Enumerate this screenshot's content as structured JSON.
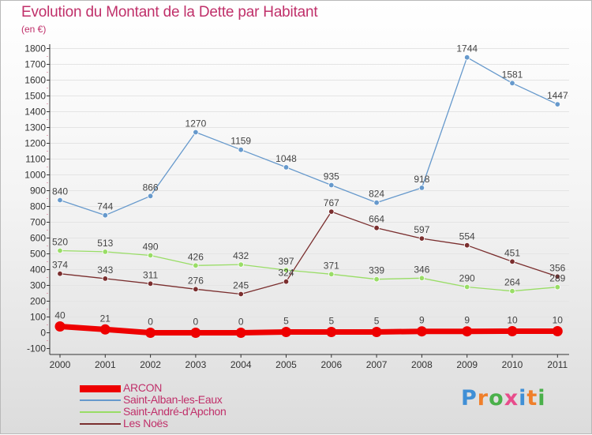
{
  "title": "Evolution du Montant de la Dette par Habitant",
  "subtitle": "(en €)",
  "logo": {
    "text": "Proxiti",
    "colors": [
      "#3f8fd6",
      "#f07f2a",
      "#4ab04a",
      "#e84c8b",
      "#3f8fd6",
      "#f07f2a",
      "#4ab04a"
    ]
  },
  "chart_data": {
    "type": "line",
    "title": "Evolution du Montant de la Dette par Habitant",
    "ylabel": "(en €)",
    "xlabel": "",
    "x": [
      "2000",
      "2001",
      "2002",
      "2003",
      "2004",
      "2005",
      "2006",
      "2007",
      "2008",
      "2009",
      "2010",
      "2011"
    ],
    "ylim": [
      -100,
      1800
    ],
    "yticks": [
      "-100",
      "0",
      "100",
      "200",
      "300",
      "400",
      "500",
      "600",
      "700",
      "800",
      "900",
      "1000",
      "1100",
      "1200",
      "1300",
      "1400",
      "1500",
      "1600",
      "1700",
      "1800"
    ],
    "legend_position": "bottom-left",
    "series": [
      {
        "name": "ARCON",
        "color": "#ee0000",
        "values": [
          40,
          21,
          0,
          0,
          0,
          5,
          5,
          5,
          9,
          9,
          10,
          10
        ],
        "labels": [
          "40",
          "21",
          "0",
          "0",
          "0",
          "5",
          "5",
          "5",
          "9",
          "9",
          "10",
          "10"
        ]
      },
      {
        "name": "Saint-Alban-les-Eaux",
        "color": "#6699cc",
        "values": [
          840,
          744,
          866,
          1270,
          1159,
          1048,
          935,
          824,
          918,
          1744,
          1581,
          1447
        ],
        "labels": [
          "840",
          "744",
          "866",
          "1270",
          "1159",
          "1048",
          "935",
          "824",
          "918",
          "1744",
          "1581",
          "1447"
        ]
      },
      {
        "name": "Saint-André-d'Apchon",
        "color": "#99dd66",
        "values": [
          520,
          513,
          490,
          426,
          432,
          397,
          371,
          339,
          346,
          290,
          264,
          289
        ],
        "labels": [
          "520",
          "513",
          "490",
          "426",
          "432",
          "397",
          "371",
          "339",
          "346",
          "290",
          "264",
          "289"
        ]
      },
      {
        "name": "Les Noës",
        "color": "#7a2e2e",
        "values": [
          374,
          343,
          311,
          276,
          245,
          324,
          767,
          664,
          597,
          554,
          451,
          356
        ],
        "labels": [
          "374",
          "343",
          "311",
          "276",
          "245",
          "324",
          "767",
          "664",
          "597",
          "554",
          "451",
          "356"
        ]
      }
    ]
  }
}
